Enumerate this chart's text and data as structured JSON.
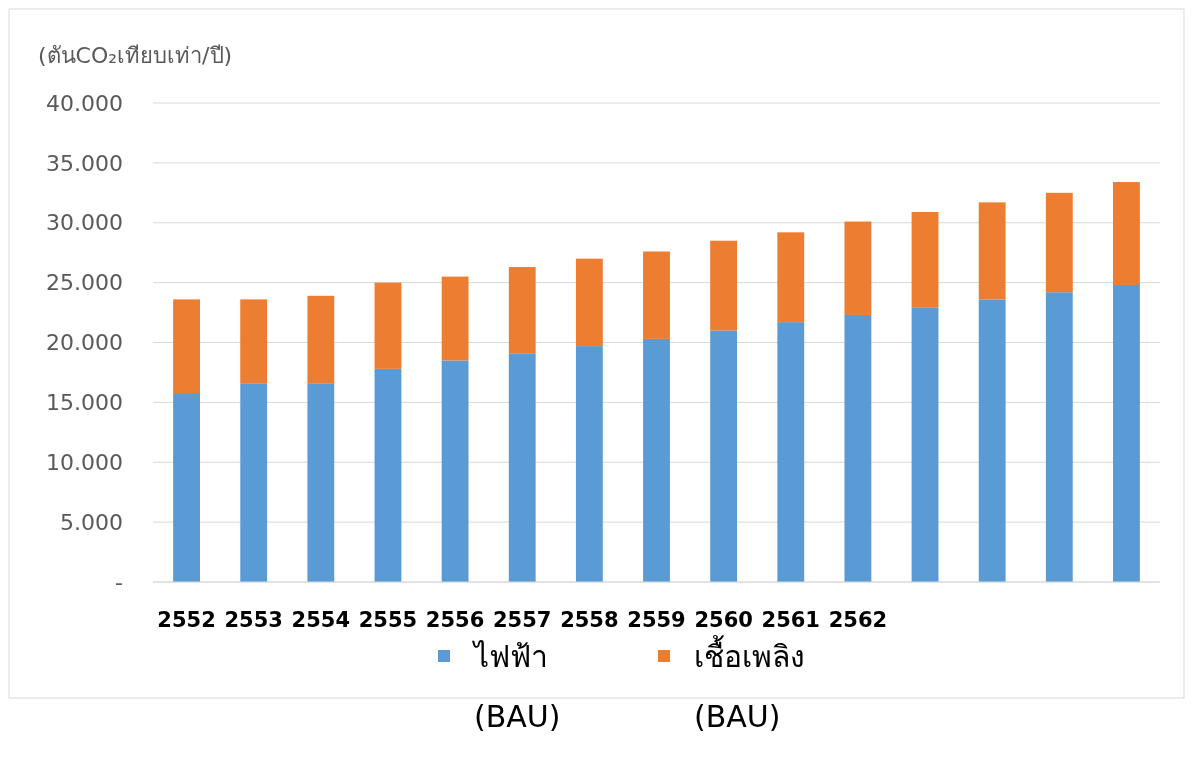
{
  "chart_data": {
    "type": "bar",
    "stacked": true,
    "ylabel": "(ตันCO₂เทียบเท่า/ปี)",
    "categories": [
      "2552",
      "2553",
      "2554",
      "2555",
      "2556",
      "2557",
      "2558",
      "2559",
      "2560",
      "2561",
      "2562",
      null,
      null,
      null,
      null
    ],
    "series": [
      {
        "name": "ไฟฟ้า (BAU)",
        "color": "#5b9bd5",
        "values": [
          15700,
          16600,
          16600,
          17800,
          18500,
          19100,
          19700,
          20300,
          21000,
          21700,
          22300,
          22900,
          23600,
          24200,
          24800
        ]
      },
      {
        "name": "เชื้อเพลิง (BAU)",
        "color": "#ed7d31",
        "values": [
          7900,
          7000,
          7300,
          7200,
          7000,
          7200,
          7300,
          7300,
          7500,
          7500,
          7800,
          8000,
          8100,
          8300,
          8600
        ]
      }
    ],
    "ylim": [
      0,
      40000
    ],
    "yticks": [
      {
        "value": 0,
        "label": "-"
      },
      {
        "value": 5000,
        "label": "5.000"
      },
      {
        "value": 10000,
        "label": "10.000"
      },
      {
        "value": 15000,
        "label": "15.000"
      },
      {
        "value": 20000,
        "label": "20.000"
      },
      {
        "value": 25000,
        "label": "25.000"
      },
      {
        "value": 30000,
        "label": "30.000"
      },
      {
        "value": 35000,
        "label": "35.000"
      },
      {
        "value": 40000,
        "label": "40.000"
      }
    ],
    "grid": "y",
    "legend": "bottom"
  }
}
